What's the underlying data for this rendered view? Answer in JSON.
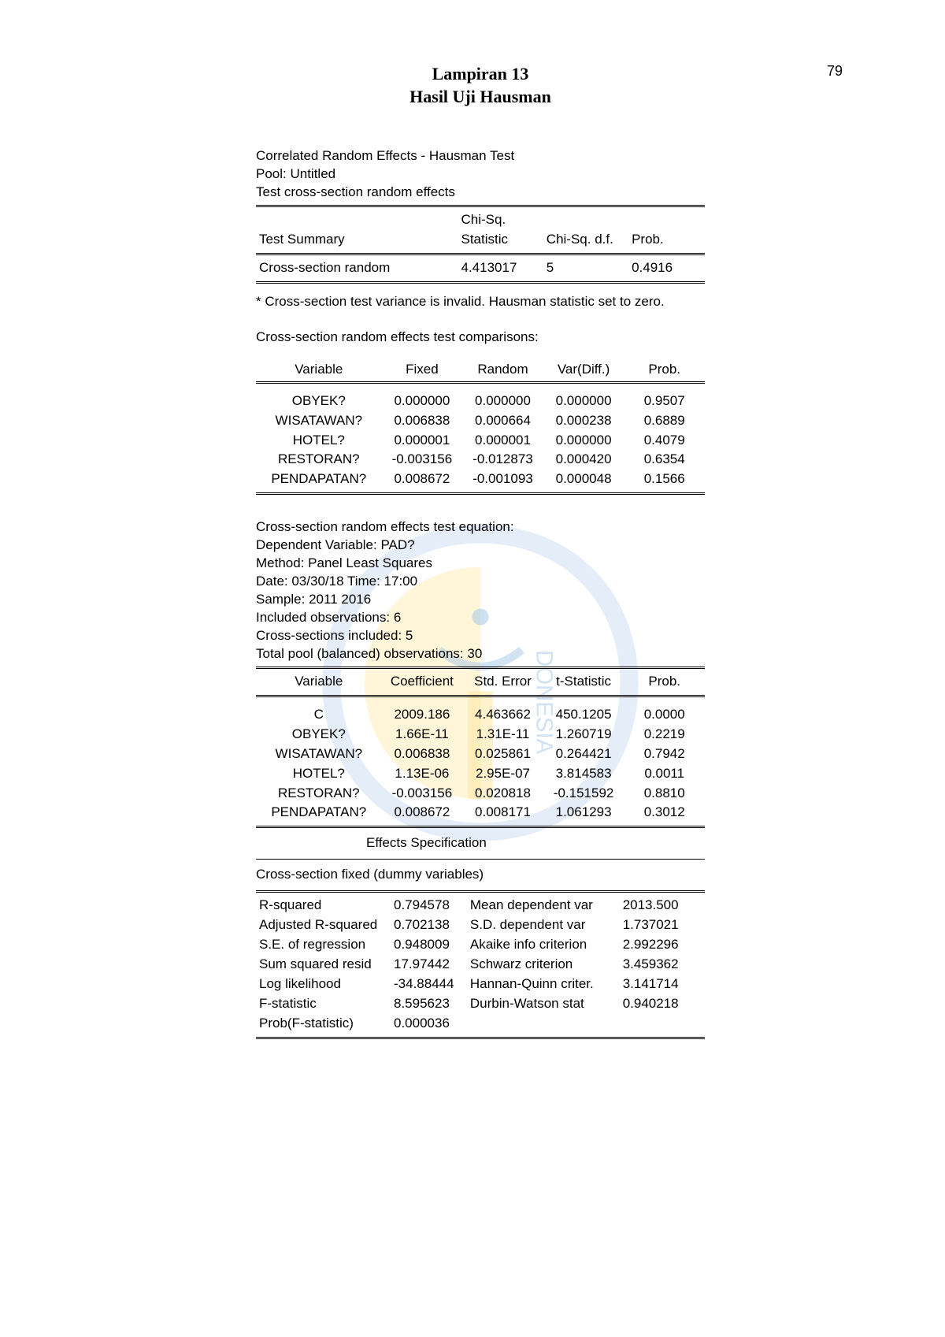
{
  "page_number": "79",
  "title_line1": "Lampiran 13",
  "title_line2": "Hasil Uji Hausman",
  "meta1": "Correlated Random Effects - Hausman Test",
  "meta2": "Pool: Untitled",
  "meta3": "Test cross-section random effects",
  "test_summary": {
    "h_summary": "Test Summary",
    "h_stat_l1": "Chi-Sq.",
    "h_stat_l2": "Statistic",
    "h_df": "Chi-Sq. d.f.",
    "h_prob": "Prob.",
    "row_label": "Cross-section random",
    "row_stat": "4.413017",
    "row_df": "5",
    "row_prob": "0.4916"
  },
  "footnote": "* Cross-section test variance is invalid. Hausman statistic set to zero.",
  "comparisons_title": "Cross-section random effects test comparisons:",
  "comparisons": {
    "h_variable": "Variable",
    "h_fixed": "Fixed",
    "h_random": "Random",
    "h_vardiff": "Var(Diff.)",
    "h_prob": "Prob.",
    "rows": [
      {
        "variable": "OBYEK?",
        "fixed": "0.000000",
        "random": "0.000000",
        "vardiff": "0.000000",
        "prob": "0.9507"
      },
      {
        "variable": "WISATAWAN?",
        "fixed": "0.006838",
        "random": "0.000664",
        "vardiff": "0.000238",
        "prob": "0.6889"
      },
      {
        "variable": "HOTEL?",
        "fixed": "0.000001",
        "random": "0.000001",
        "vardiff": "0.000000",
        "prob": "0.4079"
      },
      {
        "variable": "RESTORAN?",
        "fixed": "-0.003156",
        "random": "-0.012873",
        "vardiff": "0.000420",
        "prob": "0.6354"
      },
      {
        "variable": "PENDAPATAN?",
        "fixed": "0.008672",
        "random": "-0.001093",
        "vardiff": "0.000048",
        "prob": "0.1566"
      }
    ]
  },
  "equation_meta": [
    "Cross-section random effects test equation:",
    "Dependent Variable: PAD?",
    "Method: Panel Least Squares",
    "Date: 03/30/18   Time: 17:00",
    "Sample: 2011 2016",
    "Included observations: 6",
    "Cross-sections included: 5",
    "Total pool (balanced) observations: 30"
  ],
  "regression": {
    "h_variable": "Variable",
    "h_coef": "Coefficient",
    "h_se": "Std. Error",
    "h_t": "t-Statistic",
    "h_prob": "Prob.",
    "rows": [
      {
        "variable": "C",
        "coef": "2009.186",
        "se": "4.463662",
        "t": "450.1205",
        "prob": "0.0000"
      },
      {
        "variable": "OBYEK?",
        "coef": "1.66E-11",
        "se": "1.31E-11",
        "t": "1.260719",
        "prob": "0.2219"
      },
      {
        "variable": "WISATAWAN?",
        "coef": "0.006838",
        "se": "0.025861",
        "t": "0.264421",
        "prob": "0.7942"
      },
      {
        "variable": "HOTEL?",
        "coef": "1.13E-06",
        "se": "2.95E-07",
        "t": "3.814583",
        "prob": "0.0011"
      },
      {
        "variable": "RESTORAN?",
        "coef": "-0.003156",
        "se": "0.020818",
        "t": "-0.151592",
        "prob": "0.8810"
      },
      {
        "variable": "PENDAPATAN?",
        "coef": "0.008672",
        "se": "0.008171",
        "t": "1.061293",
        "prob": "0.3012"
      }
    ]
  },
  "effects_spec": "Effects Specification",
  "fixed_label": "Cross-section fixed (dummy variables)",
  "stats": {
    "left": [
      {
        "label": "R-squared",
        "value": "0.794578"
      },
      {
        "label": "Adjusted R-squared",
        "value": "0.702138"
      },
      {
        "label": "S.E. of regression",
        "value": "0.948009"
      },
      {
        "label": "Sum squared resid",
        "value": "17.97442"
      },
      {
        "label": "Log likelihood",
        "value": "-34.88444"
      },
      {
        "label": "F-statistic",
        "value": "8.595623"
      },
      {
        "label": "Prob(F-statistic)",
        "value": "0.000036"
      }
    ],
    "right": [
      {
        "label": "Mean dependent var",
        "value": "2013.500"
      },
      {
        "label": "S.D. dependent var",
        "value": "1.737021"
      },
      {
        "label": "Akaike info criterion",
        "value": "2.992296"
      },
      {
        "label": "Schwarz criterion",
        "value": "3.459362"
      },
      {
        "label": "Hannan-Quinn criter.",
        "value": "3.141714"
      },
      {
        "label": "Durbin-Watson stat",
        "value": "0.940218"
      }
    ]
  },
  "colors": {
    "text": "#000000",
    "bg": "#ffffff",
    "wm_blue": "#5b9bd5",
    "wm_yellow": "#ffd966"
  }
}
